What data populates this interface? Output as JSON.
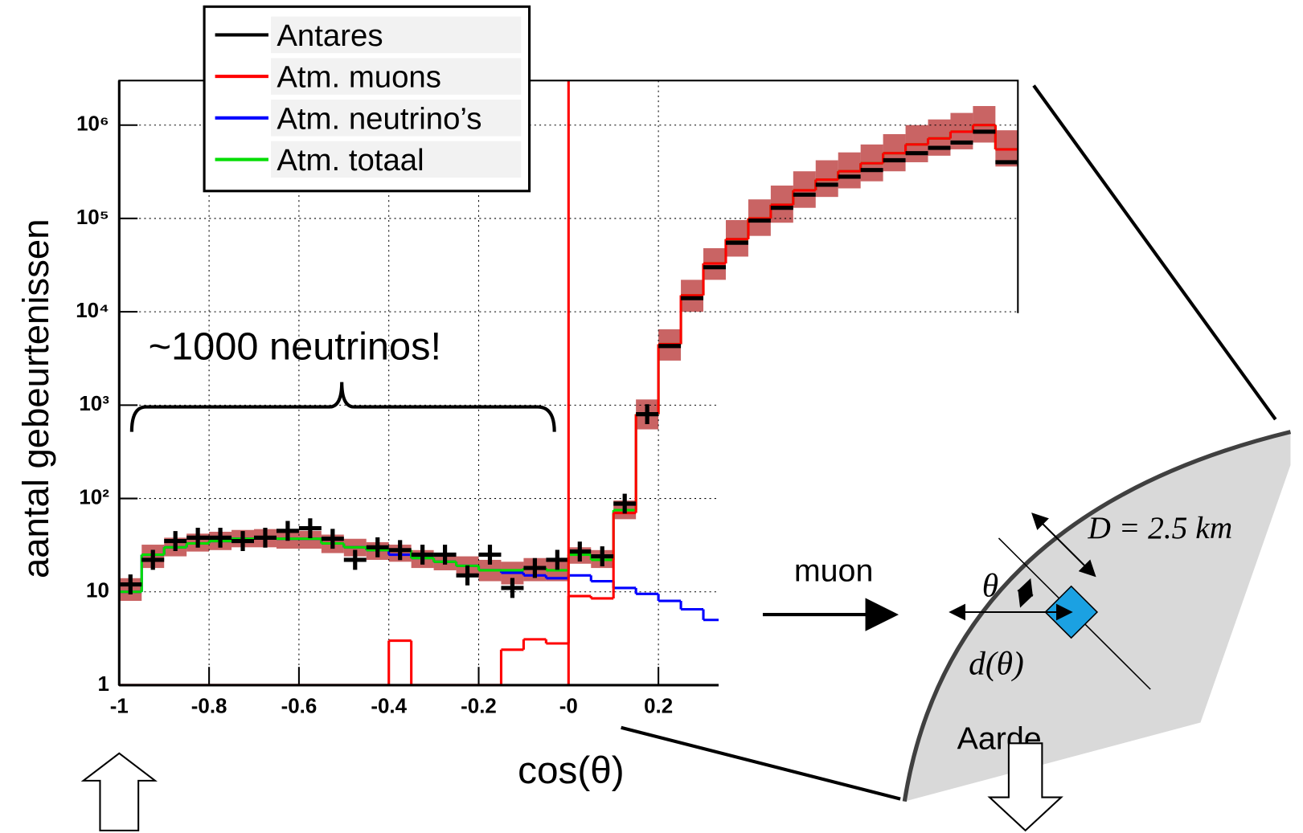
{
  "chart_data": {
    "type": "histogram",
    "xlabel": "cos(θ)",
    "ylabel": "aantal gebeurtenissen",
    "annotation": "~1000 neutrinos!",
    "log_y": true,
    "grid": true,
    "legend": "upper left",
    "xlim": [
      -1,
      1
    ],
    "ylim": [
      1,
      3000000
    ],
    "xticks": [
      -1,
      -0.8,
      -0.6,
      -0.4,
      -0.2,
      {
        "value": 0,
        "label": "-0"
      },
      0.2
    ],
    "yticks": [
      1,
      10,
      {
        "value": 100,
        "label": "10²"
      },
      {
        "value": 1000,
        "label": "10³"
      },
      {
        "value": 10000,
        "label": "10⁴"
      },
      {
        "value": 100000,
        "label": "10⁵"
      },
      {
        "value": 1000000,
        "label": "10⁶"
      }
    ],
    "cut": {
      "x": 0,
      "color": "#ff0000"
    },
    "bins": [
      -1,
      -0.95,
      -0.9,
      -0.85,
      -0.8,
      -0.75,
      -0.7,
      -0.65,
      -0.6,
      -0.55,
      -0.5,
      -0.45,
      -0.4,
      -0.35,
      -0.3,
      -0.25,
      -0.2,
      -0.15,
      -0.1,
      -0.05,
      0,
      0.05,
      0.1,
      0.15,
      0.2,
      0.25,
      0.3,
      0.35,
      0.4,
      0.45,
      0.5,
      0.55,
      0.6,
      0.65,
      0.7,
      0.75,
      0.8,
      0.85,
      0.9,
      0.95,
      1
    ],
    "band": {
      "color": "#b22222",
      "low": [
        8,
        18,
        24,
        27,
        28,
        30,
        30,
        29,
        29,
        26,
        24,
        22,
        21,
        18,
        17,
        15,
        13,
        12,
        13,
        13,
        20,
        18,
        60,
        550,
        3000,
        10000,
        22000,
        39000,
        65000,
        90000,
        130000,
        170000,
        210000,
        250000,
        320000,
        400000,
        470000,
        550000,
        650000,
        360000
      ],
      "high": [
        14,
        32,
        38,
        42,
        44,
        46,
        47,
        46,
        45,
        41,
        37,
        34,
        32,
        28,
        26,
        24,
        22,
        21,
        23,
        22,
        30,
        28,
        95,
        1150,
        6500,
        22000,
        48000,
        96000,
        160000,
        225000,
        320000,
        420000,
        510000,
        620000,
        800000,
        1000000,
        1150000,
        1350000,
        1600000,
        880000
      ]
    },
    "series": [
      {
        "name": "Antares",
        "color": "#000000",
        "marker": "cross",
        "values": [
          12,
          22,
          35,
          38,
          38,
          35,
          38,
          45,
          48,
          37,
          22,
          30,
          28,
          25,
          25,
          15,
          25,
          11,
          18,
          22,
          27,
          24,
          88,
          800,
          4300,
          14000,
          30000,
          55000,
          95000,
          130000,
          180000,
          230000,
          280000,
          330000,
          420000,
          500000,
          570000,
          650000,
          850000,
          400000
        ]
      },
      {
        "name": "Atm. muons",
        "color": "#ff0000",
        "values": [
          0,
          0,
          0,
          0,
          0,
          0,
          0,
          0,
          0,
          0,
          0,
          0,
          3,
          0,
          0,
          0,
          0,
          2.4,
          3.1,
          2.8,
          9,
          8.5,
          70,
          800,
          4500,
          15000,
          33000,
          60000,
          100000,
          140000,
          200000,
          260000,
          320000,
          390000,
          500000,
          620000,
          720000,
          850000,
          1000000,
          550000
        ]
      },
      {
        "name": "Atm. neutrino’s",
        "color": "#0000ff",
        "values": [
          10,
          25,
          30,
          33,
          35,
          37,
          38,
          37,
          37,
          33,
          30,
          28,
          25,
          23,
          21,
          19,
          17,
          16,
          15,
          14,
          15,
          13,
          11,
          9.5,
          8,
          6.5,
          5,
          null,
          null,
          null,
          null,
          null,
          null,
          null,
          null,
          null,
          null,
          null,
          null,
          null
        ]
      },
      {
        "name": "Atm. totaal",
        "color": "#00dd00",
        "values": [
          10,
          25,
          30,
          33,
          35,
          37,
          38,
          37,
          37,
          33,
          30,
          28,
          28,
          23,
          21,
          19,
          17,
          17,
          18,
          17,
          25,
          22,
          75,
          800,
          4500,
          15000,
          33000,
          60000,
          100000,
          140000,
          200000,
          260000,
          320000,
          390000,
          500000,
          620000,
          720000,
          850000,
          1000000,
          550000
        ]
      }
    ]
  },
  "diagram": {
    "muon_label": "muon",
    "distance_label": "D = 2.5 km",
    "angle_label": "θ",
    "depth_label": "d(θ)",
    "earth_label": "Aarde"
  }
}
